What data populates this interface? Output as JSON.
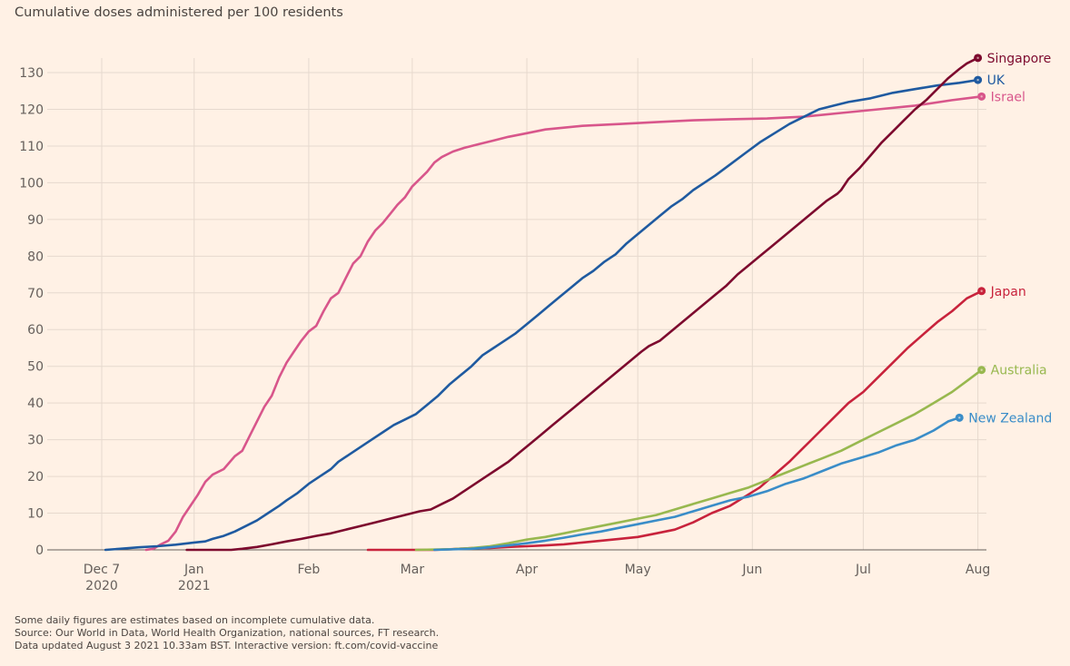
{
  "title": "Cumulative doses administered per 100 residents",
  "footnotes": [
    "Some daily figures are estimates based on incomplete cumulative data.",
    "Source: Our World in Data, World Health Organization, national sources, FT research.",
    "Data updated August 3 2021 10.33am BST. Interactive version: ft.com/covid-vaccine"
  ],
  "chart_data": {
    "type": "line",
    "title": "Cumulative doses administered per 100 residents",
    "xlabel": "",
    "ylabel": "",
    "x_unit": "days since 2020-12-07",
    "xlim": [
      0,
      239
    ],
    "ylim": [
      0,
      130
    ],
    "grid": true,
    "legend": "end-of-line labels (right)",
    "y_ticks": [
      0,
      10,
      20,
      30,
      40,
      50,
      60,
      70,
      80,
      90,
      100,
      110,
      120,
      130
    ],
    "x_ticks": [
      {
        "day": 0,
        "label": "Dec 7",
        "sublabel": "2020"
      },
      {
        "day": 25,
        "label": "Jan",
        "sublabel": "2021"
      },
      {
        "day": 56,
        "label": "Feb",
        "sublabel": ""
      },
      {
        "day": 84,
        "label": "Mar",
        "sublabel": ""
      },
      {
        "day": 115,
        "label": "Apr",
        "sublabel": ""
      },
      {
        "day": 145,
        "label": "May",
        "sublabel": ""
      },
      {
        "day": 176,
        "label": "Jun",
        "sublabel": ""
      },
      {
        "day": 206,
        "label": "Jul",
        "sublabel": ""
      },
      {
        "day": 237,
        "label": "Aug",
        "sublabel": ""
      }
    ],
    "series": [
      {
        "name": "Israel",
        "color": "#d8568b",
        "points": [
          [
            12,
            0
          ],
          [
            14,
            0.3
          ],
          [
            16,
            1.5
          ],
          [
            18,
            2.5
          ],
          [
            20,
            5
          ],
          [
            22,
            9
          ],
          [
            24,
            12
          ],
          [
            26,
            15
          ],
          [
            28,
            18.5
          ],
          [
            30,
            20.5
          ],
          [
            33,
            22
          ],
          [
            36,
            25.5
          ],
          [
            38,
            27
          ],
          [
            40,
            31
          ],
          [
            42,
            35
          ],
          [
            44,
            39
          ],
          [
            46,
            42
          ],
          [
            48,
            47
          ],
          [
            50,
            51
          ],
          [
            52,
            54
          ],
          [
            54,
            57
          ],
          [
            56,
            59.5
          ],
          [
            58,
            61
          ],
          [
            60,
            65
          ],
          [
            62,
            68.5
          ],
          [
            64,
            70
          ],
          [
            66,
            74
          ],
          [
            68,
            78
          ],
          [
            70,
            80
          ],
          [
            72,
            84
          ],
          [
            74,
            87
          ],
          [
            76,
            89
          ],
          [
            78,
            91.5
          ],
          [
            80,
            94
          ],
          [
            82,
            96
          ],
          [
            84,
            99
          ],
          [
            86,
            101
          ],
          [
            88,
            103
          ],
          [
            90,
            105.5
          ],
          [
            92,
            107
          ],
          [
            95,
            108.5
          ],
          [
            98,
            109.5
          ],
          [
            102,
            110.5
          ],
          [
            106,
            111.5
          ],
          [
            110,
            112.5
          ],
          [
            115,
            113.5
          ],
          [
            120,
            114.5
          ],
          [
            125,
            115
          ],
          [
            130,
            115.5
          ],
          [
            140,
            116
          ],
          [
            150,
            116.5
          ],
          [
            160,
            117
          ],
          [
            170,
            117.3
          ],
          [
            180,
            117.5
          ],
          [
            190,
            118
          ],
          [
            200,
            119
          ],
          [
            210,
            120
          ],
          [
            220,
            121
          ],
          [
            230,
            122.5
          ],
          [
            238,
            123.5
          ]
        ]
      },
      {
        "name": "UK",
        "color": "#1f5aa0",
        "points": [
          [
            1,
            0
          ],
          [
            5,
            0.3
          ],
          [
            10,
            0.7
          ],
          [
            15,
            1
          ],
          [
            20,
            1.4
          ],
          [
            25,
            2
          ],
          [
            28,
            2.3
          ],
          [
            30,
            3
          ],
          [
            33,
            3.8
          ],
          [
            36,
            5
          ],
          [
            39,
            6.5
          ],
          [
            42,
            8
          ],
          [
            45,
            10
          ],
          [
            48,
            12
          ],
          [
            50,
            13.5
          ],
          [
            53,
            15.5
          ],
          [
            56,
            18
          ],
          [
            59,
            20
          ],
          [
            62,
            22
          ],
          [
            64,
            24
          ],
          [
            67,
            26
          ],
          [
            70,
            28
          ],
          [
            73,
            30
          ],
          [
            76,
            32
          ],
          [
            79,
            34
          ],
          [
            82,
            35.5
          ],
          [
            85,
            37
          ],
          [
            88,
            39.5
          ],
          [
            91,
            42
          ],
          [
            94,
            45
          ],
          [
            97,
            47.5
          ],
          [
            100,
            50
          ],
          [
            103,
            53
          ],
          [
            106,
            55
          ],
          [
            109,
            57
          ],
          [
            112,
            59
          ],
          [
            115,
            61.5
          ],
          [
            118,
            64
          ],
          [
            121,
            66.5
          ],
          [
            124,
            69
          ],
          [
            127,
            71.5
          ],
          [
            130,
            74
          ],
          [
            133,
            76
          ],
          [
            136,
            78.5
          ],
          [
            139,
            80.5
          ],
          [
            142,
            83.5
          ],
          [
            145,
            86
          ],
          [
            148,
            88.5
          ],
          [
            151,
            91
          ],
          [
            154,
            93.5
          ],
          [
            157,
            95.5
          ],
          [
            160,
            98
          ],
          [
            163,
            100
          ],
          [
            166,
            102
          ],
          [
            170,
            105
          ],
          [
            174,
            108
          ],
          [
            178,
            111
          ],
          [
            182,
            113.5
          ],
          [
            186,
            116
          ],
          [
            190,
            118
          ],
          [
            194,
            120
          ],
          [
            198,
            121
          ],
          [
            202,
            122
          ],
          [
            208,
            123
          ],
          [
            214,
            124.5
          ],
          [
            220,
            125.5
          ],
          [
            226,
            126.5
          ],
          [
            232,
            127.2
          ],
          [
            237,
            128
          ]
        ]
      },
      {
        "name": "Singapore",
        "color": "#7d0a2e",
        "points": [
          [
            23,
            0
          ],
          [
            30,
            0
          ],
          [
            35,
            0
          ],
          [
            38,
            0.3
          ],
          [
            42,
            0.8
          ],
          [
            46,
            1.5
          ],
          [
            50,
            2.3
          ],
          [
            54,
            3
          ],
          [
            58,
            3.8
          ],
          [
            62,
            4.5
          ],
          [
            66,
            5.5
          ],
          [
            70,
            6.5
          ],
          [
            74,
            7.5
          ],
          [
            78,
            8.5
          ],
          [
            82,
            9.5
          ],
          [
            86,
            10.5
          ],
          [
            89,
            11
          ],
          [
            92,
            12.5
          ],
          [
            95,
            14
          ],
          [
            98,
            16
          ],
          [
            101,
            18
          ],
          [
            104,
            20
          ],
          [
            107,
            22
          ],
          [
            110,
            24
          ],
          [
            113,
            26.5
          ],
          [
            116,
            29
          ],
          [
            119,
            31.5
          ],
          [
            122,
            34
          ],
          [
            125,
            36.5
          ],
          [
            128,
            39
          ],
          [
            131,
            41.5
          ],
          [
            134,
            44
          ],
          [
            137,
            46.5
          ],
          [
            140,
            49
          ],
          [
            143,
            51.5
          ],
          [
            146,
            54
          ],
          [
            148,
            55.5
          ],
          [
            151,
            57
          ],
          [
            154,
            59.5
          ],
          [
            157,
            62
          ],
          [
            160,
            64.5
          ],
          [
            163,
            67
          ],
          [
            166,
            69.5
          ],
          [
            169,
            72
          ],
          [
            172,
            75
          ],
          [
            175,
            77.5
          ],
          [
            178,
            80
          ],
          [
            181,
            82.5
          ],
          [
            184,
            85
          ],
          [
            187,
            87.5
          ],
          [
            190,
            90
          ],
          [
            193,
            92.5
          ],
          [
            196,
            95
          ],
          [
            199,
            97
          ],
          [
            200,
            98
          ],
          [
            202,
            101
          ],
          [
            205,
            104
          ],
          [
            208,
            107.5
          ],
          [
            211,
            111
          ],
          [
            214,
            114
          ],
          [
            217,
            117
          ],
          [
            220,
            120
          ],
          [
            223,
            122.5
          ],
          [
            226,
            125.5
          ],
          [
            229,
            128.5
          ],
          [
            232,
            131
          ],
          [
            234,
            132.5
          ],
          [
            237,
            134
          ]
        ]
      },
      {
        "name": "Japan",
        "color": "#c8233c",
        "points": [
          [
            72,
            0
          ],
          [
            80,
            0
          ],
          [
            90,
            0
          ],
          [
            95,
            0.2
          ],
          [
            100,
            0.5
          ],
          [
            105,
            0.5
          ],
          [
            110,
            0.8
          ],
          [
            115,
            1
          ],
          [
            120,
            1.2
          ],
          [
            125,
            1.5
          ],
          [
            130,
            2
          ],
          [
            135,
            2.5
          ],
          [
            140,
            3
          ],
          [
            145,
            3.5
          ],
          [
            150,
            4.5
          ],
          [
            155,
            5.5
          ],
          [
            160,
            7.5
          ],
          [
            165,
            10
          ],
          [
            170,
            12
          ],
          [
            174,
            14.5
          ],
          [
            178,
            17
          ],
          [
            182,
            20.5
          ],
          [
            186,
            24
          ],
          [
            190,
            28
          ],
          [
            194,
            32
          ],
          [
            198,
            36
          ],
          [
            202,
            40
          ],
          [
            206,
            43
          ],
          [
            210,
            47
          ],
          [
            214,
            51
          ],
          [
            218,
            55
          ],
          [
            222,
            58.5
          ],
          [
            226,
            62
          ],
          [
            230,
            65
          ],
          [
            234,
            68.5
          ],
          [
            238,
            70.5
          ]
        ]
      },
      {
        "name": "Australia",
        "color": "#98b84f",
        "points": [
          [
            85,
            0
          ],
          [
            95,
            0.2
          ],
          [
            100,
            0.5
          ],
          [
            105,
            1
          ],
          [
            110,
            1.8
          ],
          [
            115,
            2.8
          ],
          [
            120,
            3.5
          ],
          [
            125,
            4.5
          ],
          [
            130,
            5.5
          ],
          [
            135,
            6.5
          ],
          [
            140,
            7.5
          ],
          [
            145,
            8.5
          ],
          [
            150,
            9.5
          ],
          [
            155,
            11
          ],
          [
            160,
            12.5
          ],
          [
            165,
            14
          ],
          [
            170,
            15.5
          ],
          [
            175,
            17
          ],
          [
            180,
            19
          ],
          [
            185,
            21
          ],
          [
            190,
            23
          ],
          [
            195,
            25
          ],
          [
            200,
            27
          ],
          [
            205,
            29.5
          ],
          [
            210,
            32
          ],
          [
            215,
            34.5
          ],
          [
            220,
            37
          ],
          [
            225,
            40
          ],
          [
            230,
            43
          ],
          [
            234,
            46
          ],
          [
            238,
            49
          ]
        ]
      },
      {
        "name": "New Zealand",
        "color": "#3a8dc8",
        "points": [
          [
            90,
            0
          ],
          [
            100,
            0.3
          ],
          [
            105,
            0.7
          ],
          [
            110,
            1.2
          ],
          [
            115,
            1.8
          ],
          [
            120,
            2.5
          ],
          [
            125,
            3.3
          ],
          [
            130,
            4.2
          ],
          [
            135,
            5
          ],
          [
            140,
            6
          ],
          [
            145,
            7
          ],
          [
            150,
            8
          ],
          [
            155,
            9
          ],
          [
            160,
            10.5
          ],
          [
            165,
            12
          ],
          [
            170,
            13.5
          ],
          [
            175,
            14.5
          ],
          [
            180,
            16
          ],
          [
            185,
            18
          ],
          [
            190,
            19.5
          ],
          [
            195,
            21.5
          ],
          [
            200,
            23.5
          ],
          [
            205,
            25
          ],
          [
            210,
            26.5
          ],
          [
            215,
            28.5
          ],
          [
            220,
            30
          ],
          [
            225,
            32.5
          ],
          [
            229,
            35
          ],
          [
            232,
            36
          ]
        ]
      }
    ]
  }
}
